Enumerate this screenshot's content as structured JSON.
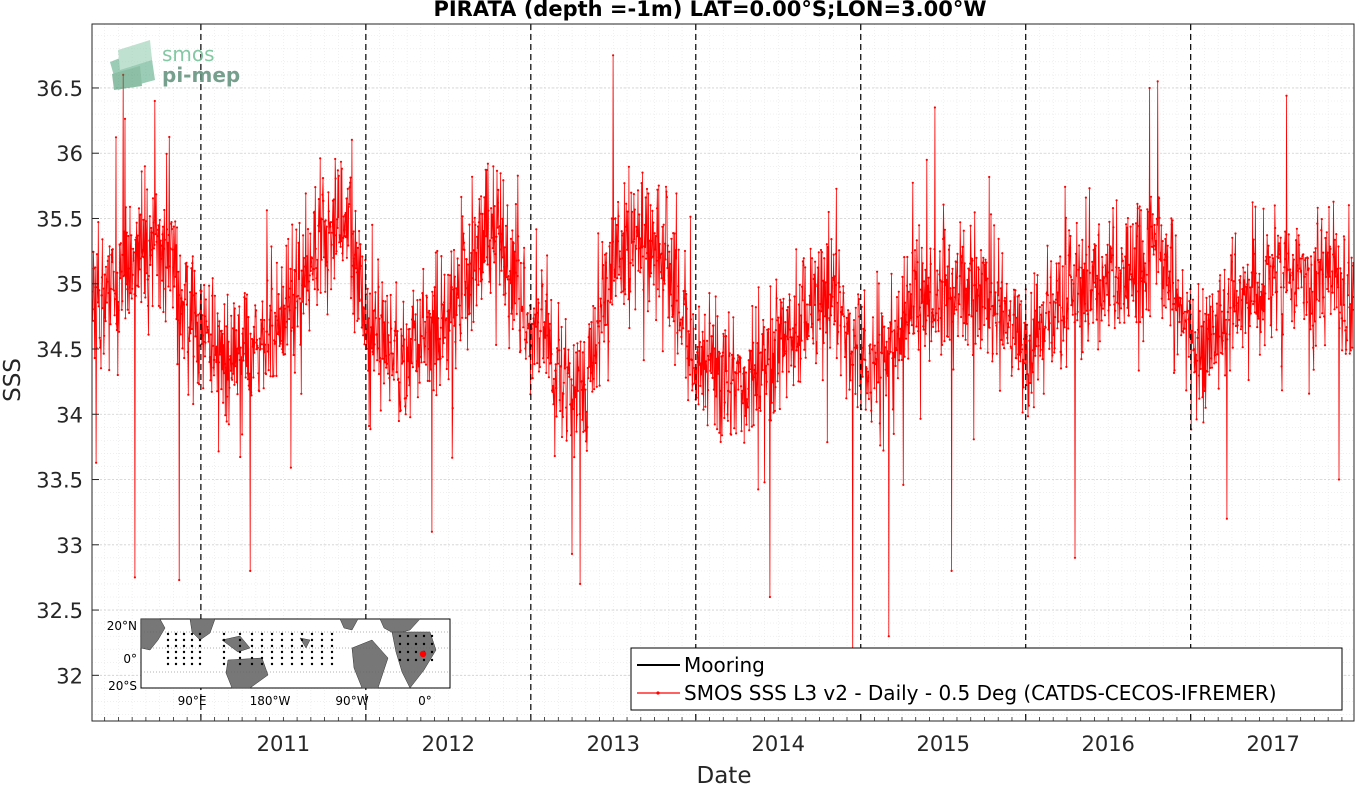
{
  "chart_data": {
    "type": "line",
    "title": "PIRATA (depth =-1m) LAT=0.00°S;LON=3.00°W",
    "xlabel": "Date",
    "ylabel": "SSS",
    "x_ticks": [
      "2011",
      "2012",
      "2013",
      "2014",
      "2015",
      "2016",
      "2017"
    ],
    "y_ticks": [
      "32",
      "32.5",
      "33",
      "33.5",
      "34",
      "34.5",
      "35",
      "35.5",
      "36",
      "36.5"
    ],
    "xlim": [
      2010.34,
      2017.99
    ],
    "ylim": [
      31.65,
      36.99
    ],
    "grid": true,
    "legend_position": "bottom-right",
    "vertical_dashed_lines_at": [
      2011,
      2012,
      2013,
      2014,
      2015,
      2016,
      2017
    ],
    "series": [
      {
        "name": "Mooring",
        "color": "#000000",
        "values": []
      },
      {
        "name": "SMOS SSS L3 v2 - Daily - 0.5 Deg (CATDS-CECOS-IFREMER)",
        "color": "#ff0000",
        "marker": "dot",
        "sampling": "daily (approximate reconstruction of the noisy daily series)",
        "anchors": [
          [
            2010.34,
            34.8
          ],
          [
            2010.5,
            35.0
          ],
          [
            2010.7,
            35.3
          ],
          [
            2010.85,
            35.1
          ],
          [
            2011.0,
            34.6
          ],
          [
            2011.2,
            34.4
          ],
          [
            2011.4,
            34.6
          ],
          [
            2011.55,
            34.9
          ],
          [
            2011.75,
            35.3
          ],
          [
            2011.9,
            35.5
          ],
          [
            2012.0,
            34.7
          ],
          [
            2012.2,
            34.4
          ],
          [
            2012.4,
            34.6
          ],
          [
            2012.6,
            35.0
          ],
          [
            2012.8,
            35.5
          ],
          [
            2012.9,
            35.0
          ],
          [
            2013.05,
            34.6
          ],
          [
            2013.2,
            34.3
          ],
          [
            2013.35,
            34.2
          ],
          [
            2013.5,
            35.2
          ],
          [
            2013.7,
            35.3
          ],
          [
            2013.9,
            34.9
          ],
          [
            2014.0,
            34.4
          ],
          [
            2014.3,
            34.2
          ],
          [
            2014.6,
            34.7
          ],
          [
            2014.8,
            35.0
          ],
          [
            2014.95,
            34.5
          ],
          [
            2015.1,
            34.3
          ],
          [
            2015.3,
            34.8
          ],
          [
            2015.5,
            34.9
          ],
          [
            2015.7,
            35.0
          ],
          [
            2015.9,
            34.7
          ],
          [
            2016.0,
            34.4
          ],
          [
            2016.2,
            34.9
          ],
          [
            2016.4,
            35.0
          ],
          [
            2016.6,
            35.1
          ],
          [
            2016.8,
            35.3
          ],
          [
            2016.95,
            34.8
          ],
          [
            2017.05,
            34.4
          ],
          [
            2017.25,
            34.8
          ],
          [
            2017.5,
            35.1
          ],
          [
            2017.7,
            35.0
          ],
          [
            2017.85,
            35.2
          ],
          [
            2017.99,
            34.6
          ]
        ],
        "noise_sd": 0.45,
        "spikes": [
          [
            2010.53,
            36.6
          ],
          [
            2010.6,
            32.75
          ],
          [
            2010.87,
            32.73
          ],
          [
            2010.72,
            36.4
          ],
          [
            2011.3,
            32.8
          ],
          [
            2012.4,
            33.1
          ],
          [
            2013.25,
            32.93
          ],
          [
            2013.3,
            32.7
          ],
          [
            2013.5,
            36.75
          ],
          [
            2014.45,
            32.6
          ],
          [
            2014.95,
            32.0
          ],
          [
            2015.17,
            32.3
          ],
          [
            2015.45,
            36.35
          ],
          [
            2015.55,
            32.8
          ],
          [
            2016.75,
            36.5
          ],
          [
            2016.8,
            36.55
          ],
          [
            2016.3,
            32.9
          ],
          [
            2017.22,
            33.2
          ],
          [
            2017.9,
            33.5
          ]
        ]
      }
    ]
  },
  "logo": {
    "line1": "smos",
    "line2": "pi-mep",
    "color": "#3f9c6b"
  },
  "inset_map": {
    "y_labels": [
      "20°N",
      "0°",
      "20°S"
    ],
    "x_labels": [
      "90°E",
      "180°W",
      "90°W",
      "0°"
    ],
    "land_color": "#777777",
    "ocean_color": "#ffffff",
    "marker_color": "#ff0000"
  }
}
